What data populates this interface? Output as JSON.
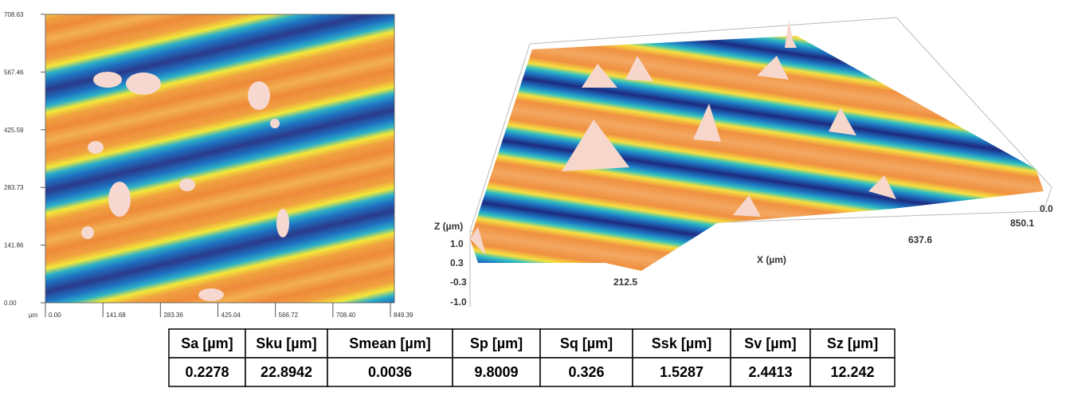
{
  "map2d": {
    "unit": "µm",
    "yticks": [
      "708.63",
      "567.46",
      "425.59",
      "283.73",
      "141.86",
      "0.00"
    ],
    "xticks": [
      "0.00",
      "141.68",
      "283.36",
      "425.04",
      "566.72",
      "708.40",
      "849.39"
    ]
  },
  "view3d": {
    "z_label": "Z (µm)",
    "z_ticks": [
      "1.0",
      "0.3",
      "-0.3",
      "-1.0"
    ],
    "x_label": "X (µm)",
    "x_ticks": [
      "212.5",
      "637.6",
      "850.1"
    ],
    "y_tick": "0.0"
  },
  "table": {
    "header": [
      "Sa [µm]",
      "Sku [µm]",
      "Smean [µm]",
      "Sp [µm]",
      "Sq [µm]",
      "Ssk [µm]",
      "Sv [µm]",
      "Sz [µm]"
    ],
    "rows": [
      [
        "0.2278",
        "22.8942",
        "0.0036",
        "9.8009",
        "0.326",
        "1.5287",
        "2.4413",
        "12.242"
      ]
    ]
  }
}
